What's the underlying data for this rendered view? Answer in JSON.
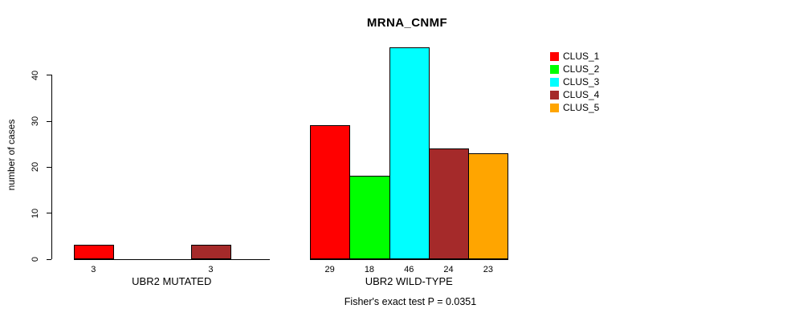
{
  "title": "MRNA_CNMF",
  "ylabel": "number of cases",
  "annotation": "Fisher's exact test P = 0.0351",
  "legend": {
    "items": [
      {
        "label": "CLUS_1",
        "color": "#ff0000"
      },
      {
        "label": "CLUS_2",
        "color": "#00ff00"
      },
      {
        "label": "CLUS_3",
        "color": "#00ffff"
      },
      {
        "label": "CLUS_4",
        "color": "#a52a2a"
      },
      {
        "label": "CLUS_5",
        "color": "#ffa500"
      }
    ]
  },
  "chart_data": {
    "type": "bar",
    "title": "MRNA_CNMF",
    "xlabel": "",
    "ylabel": "number of cases",
    "yticks": [
      0,
      10,
      20,
      30,
      40
    ],
    "ylim": [
      0,
      46
    ],
    "grid": false,
    "legend_position": "top-right",
    "series_names": [
      "CLUS_1",
      "CLUS_2",
      "CLUS_3",
      "CLUS_4",
      "CLUS_5"
    ],
    "colors": [
      "#ff0000",
      "#00ff00",
      "#00ffff",
      "#a52a2a",
      "#ffa500"
    ],
    "groups": [
      {
        "label": "UBR2 MUTATED",
        "values": [
          3,
          0,
          0,
          3,
          0
        ]
      },
      {
        "label": "UBR2 WILD-TYPE",
        "values": [
          29,
          18,
          46,
          24,
          23
        ]
      }
    ],
    "annotation": "Fisher's exact test P = 0.0351"
  }
}
